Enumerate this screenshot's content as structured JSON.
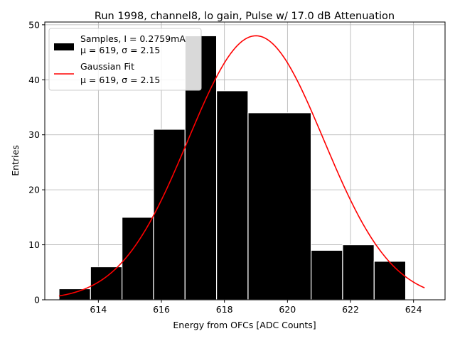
{
  "chart_data": {
    "type": "bar",
    "title": "Run 1998, channel8, lo gain, Pulse w/ 17.0 dB Attenuation",
    "xlabel": "Energy from OFCs [ADC Counts]",
    "ylabel": "Entries",
    "xlim": [
      612.3,
      625.0
    ],
    "ylim": [
      0,
      50.5
    ],
    "grid": true,
    "xticks": [
      614,
      616,
      618,
      620,
      622,
      624
    ],
    "yticks": [
      0,
      10,
      20,
      30,
      40,
      50
    ],
    "bins": [
      {
        "left": 612.75,
        "right": 613.75,
        "value": 2
      },
      {
        "left": 613.75,
        "right": 614.75,
        "value": 6
      },
      {
        "left": 614.75,
        "right": 615.75,
        "value": 15
      },
      {
        "left": 615.75,
        "right": 616.75,
        "value": 31
      },
      {
        "left": 616.75,
        "right": 617.75,
        "value": 48
      },
      {
        "left": 617.75,
        "right": 618.75,
        "value": 38
      },
      {
        "left": 618.75,
        "right": 620.75,
        "value": 34
      },
      {
        "left": 620.75,
        "right": 621.75,
        "value": 9
      },
      {
        "left": 621.75,
        "right": 622.75,
        "value": 10
      },
      {
        "left": 622.75,
        "right": 623.75,
        "value": 7
      }
    ],
    "fit": {
      "mu": 619.0,
      "sigma": 2.15,
      "amplitude": 48,
      "x_range": [
        612.75,
        624.35
      ]
    },
    "legend": {
      "position": "upper-left",
      "entries": [
        {
          "marker": "patch",
          "line1": "Samples, I = 0.2759mA",
          "line2": "μ = 619, σ = 2.15"
        },
        {
          "marker": "line",
          "line1": "Gaussian Fit",
          "line2": "μ = 619, σ = 2.15"
        }
      ]
    }
  },
  "colors": {
    "bar": "#000000",
    "bar_edge": "#ffffff",
    "fit": "#ff0000",
    "grid": "#b0b0b0"
  }
}
